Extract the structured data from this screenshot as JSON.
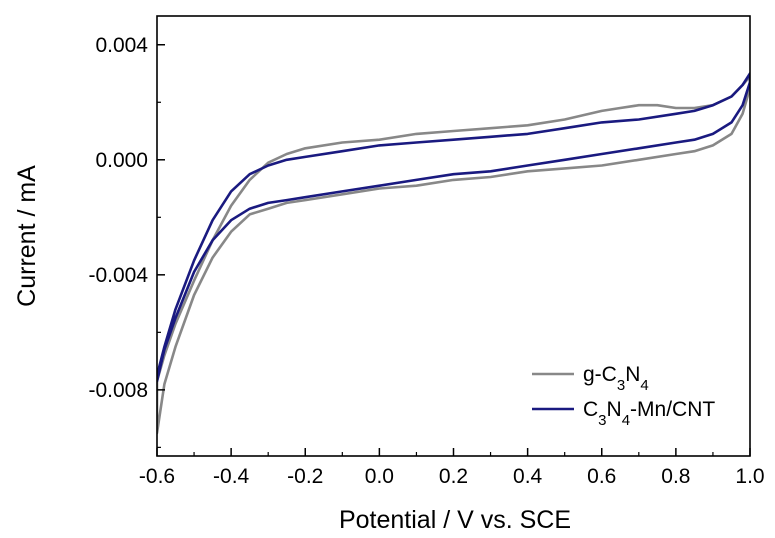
{
  "chart_data": {
    "type": "line",
    "xlabel": "Potential / V vs. SCE",
    "ylabel": "Current / mA",
    "xlim": [
      -0.6,
      1.0
    ],
    "ylim": [
      -0.0103,
      0.005
    ],
    "xticks": [
      -0.6,
      -0.4,
      -0.2,
      0.0,
      0.2,
      0.4,
      0.6,
      0.8,
      1.0
    ],
    "xtick_labels": [
      "-0.6",
      "-0.4",
      "-0.2",
      "0.0",
      "0.2",
      "0.4",
      "0.6",
      "0.8",
      "1.0"
    ],
    "yticks": [
      -0.008,
      -0.004,
      0.0,
      0.004
    ],
    "ytick_labels": [
      "-0.008",
      "-0.004",
      "0.000",
      "0.004"
    ],
    "grid": false,
    "legend_position": "bottom-right",
    "series": [
      {
        "name": "g-C3N4",
        "legend": {
          "base": "g-C",
          "sub1": "3",
          "mid": "N",
          "sub2": "4",
          "suffix": ""
        },
        "color": "#888888",
        "x": [
          -0.6,
          -0.58,
          -0.55,
          -0.5,
          -0.45,
          -0.4,
          -0.35,
          -0.3,
          -0.25,
          -0.2,
          -0.1,
          0.0,
          0.1,
          0.2,
          0.3,
          0.4,
          0.5,
          0.6,
          0.65,
          0.7,
          0.75,
          0.8,
          0.85,
          0.9,
          0.95,
          0.98,
          1.0,
          1.0,
          0.98,
          0.95,
          0.9,
          0.85,
          0.8,
          0.7,
          0.6,
          0.5,
          0.4,
          0.3,
          0.2,
          0.1,
          0.0,
          -0.1,
          -0.2,
          -0.25,
          -0.3,
          -0.35,
          -0.4,
          -0.45,
          -0.5,
          -0.55,
          -0.58,
          -0.6
        ],
        "y": [
          -0.0077,
          -0.0068,
          -0.0057,
          -0.0042,
          -0.0028,
          -0.0016,
          -0.0007,
          -0.0001,
          0.0002,
          0.0004,
          0.0006,
          0.0007,
          0.0009,
          0.001,
          0.0011,
          0.0012,
          0.0014,
          0.0017,
          0.0018,
          0.0019,
          0.0019,
          0.0018,
          0.0018,
          0.0019,
          0.0022,
          0.0026,
          0.0029,
          0.0025,
          0.0016,
          0.0009,
          0.0005,
          0.0003,
          0.0002,
          0.0,
          -0.0002,
          -0.0003,
          -0.0004,
          -0.0006,
          -0.0007,
          -0.0009,
          -0.001,
          -0.0012,
          -0.0014,
          -0.0015,
          -0.0017,
          -0.0019,
          -0.0025,
          -0.0034,
          -0.0047,
          -0.0065,
          -0.0078,
          -0.0095
        ]
      },
      {
        "name": "C3N4-Mn/CNT",
        "legend": {
          "base": "C",
          "sub1": "3",
          "mid": "N",
          "sub2": "4",
          "suffix": "-Mn/CNT"
        },
        "color": "#1a1a80",
        "x": [
          -0.6,
          -0.58,
          -0.55,
          -0.5,
          -0.45,
          -0.4,
          -0.35,
          -0.3,
          -0.25,
          -0.2,
          -0.1,
          0.0,
          0.1,
          0.2,
          0.3,
          0.4,
          0.5,
          0.6,
          0.7,
          0.8,
          0.85,
          0.9,
          0.95,
          0.98,
          1.0,
          1.0,
          0.98,
          0.95,
          0.9,
          0.85,
          0.8,
          0.7,
          0.6,
          0.5,
          0.4,
          0.3,
          0.2,
          0.1,
          0.0,
          -0.1,
          -0.2,
          -0.25,
          -0.3,
          -0.35,
          -0.4,
          -0.45,
          -0.5,
          -0.55,
          -0.58,
          -0.6
        ],
        "y": [
          -0.0075,
          -0.0065,
          -0.0052,
          -0.0035,
          -0.0021,
          -0.0011,
          -0.0005,
          -0.0002,
          0.0,
          0.0001,
          0.0003,
          0.0005,
          0.0006,
          0.0007,
          0.0008,
          0.0009,
          0.0011,
          0.0013,
          0.0014,
          0.0016,
          0.0017,
          0.0019,
          0.0022,
          0.0026,
          0.003,
          0.0027,
          0.0019,
          0.0013,
          0.0009,
          0.0007,
          0.0006,
          0.0004,
          0.0002,
          0.0,
          -0.0002,
          -0.0004,
          -0.0005,
          -0.0007,
          -0.0009,
          -0.0011,
          -0.0013,
          -0.0014,
          -0.0015,
          -0.0017,
          -0.0021,
          -0.0028,
          -0.0039,
          -0.0055,
          -0.0066,
          -0.0077
        ]
      }
    ]
  }
}
